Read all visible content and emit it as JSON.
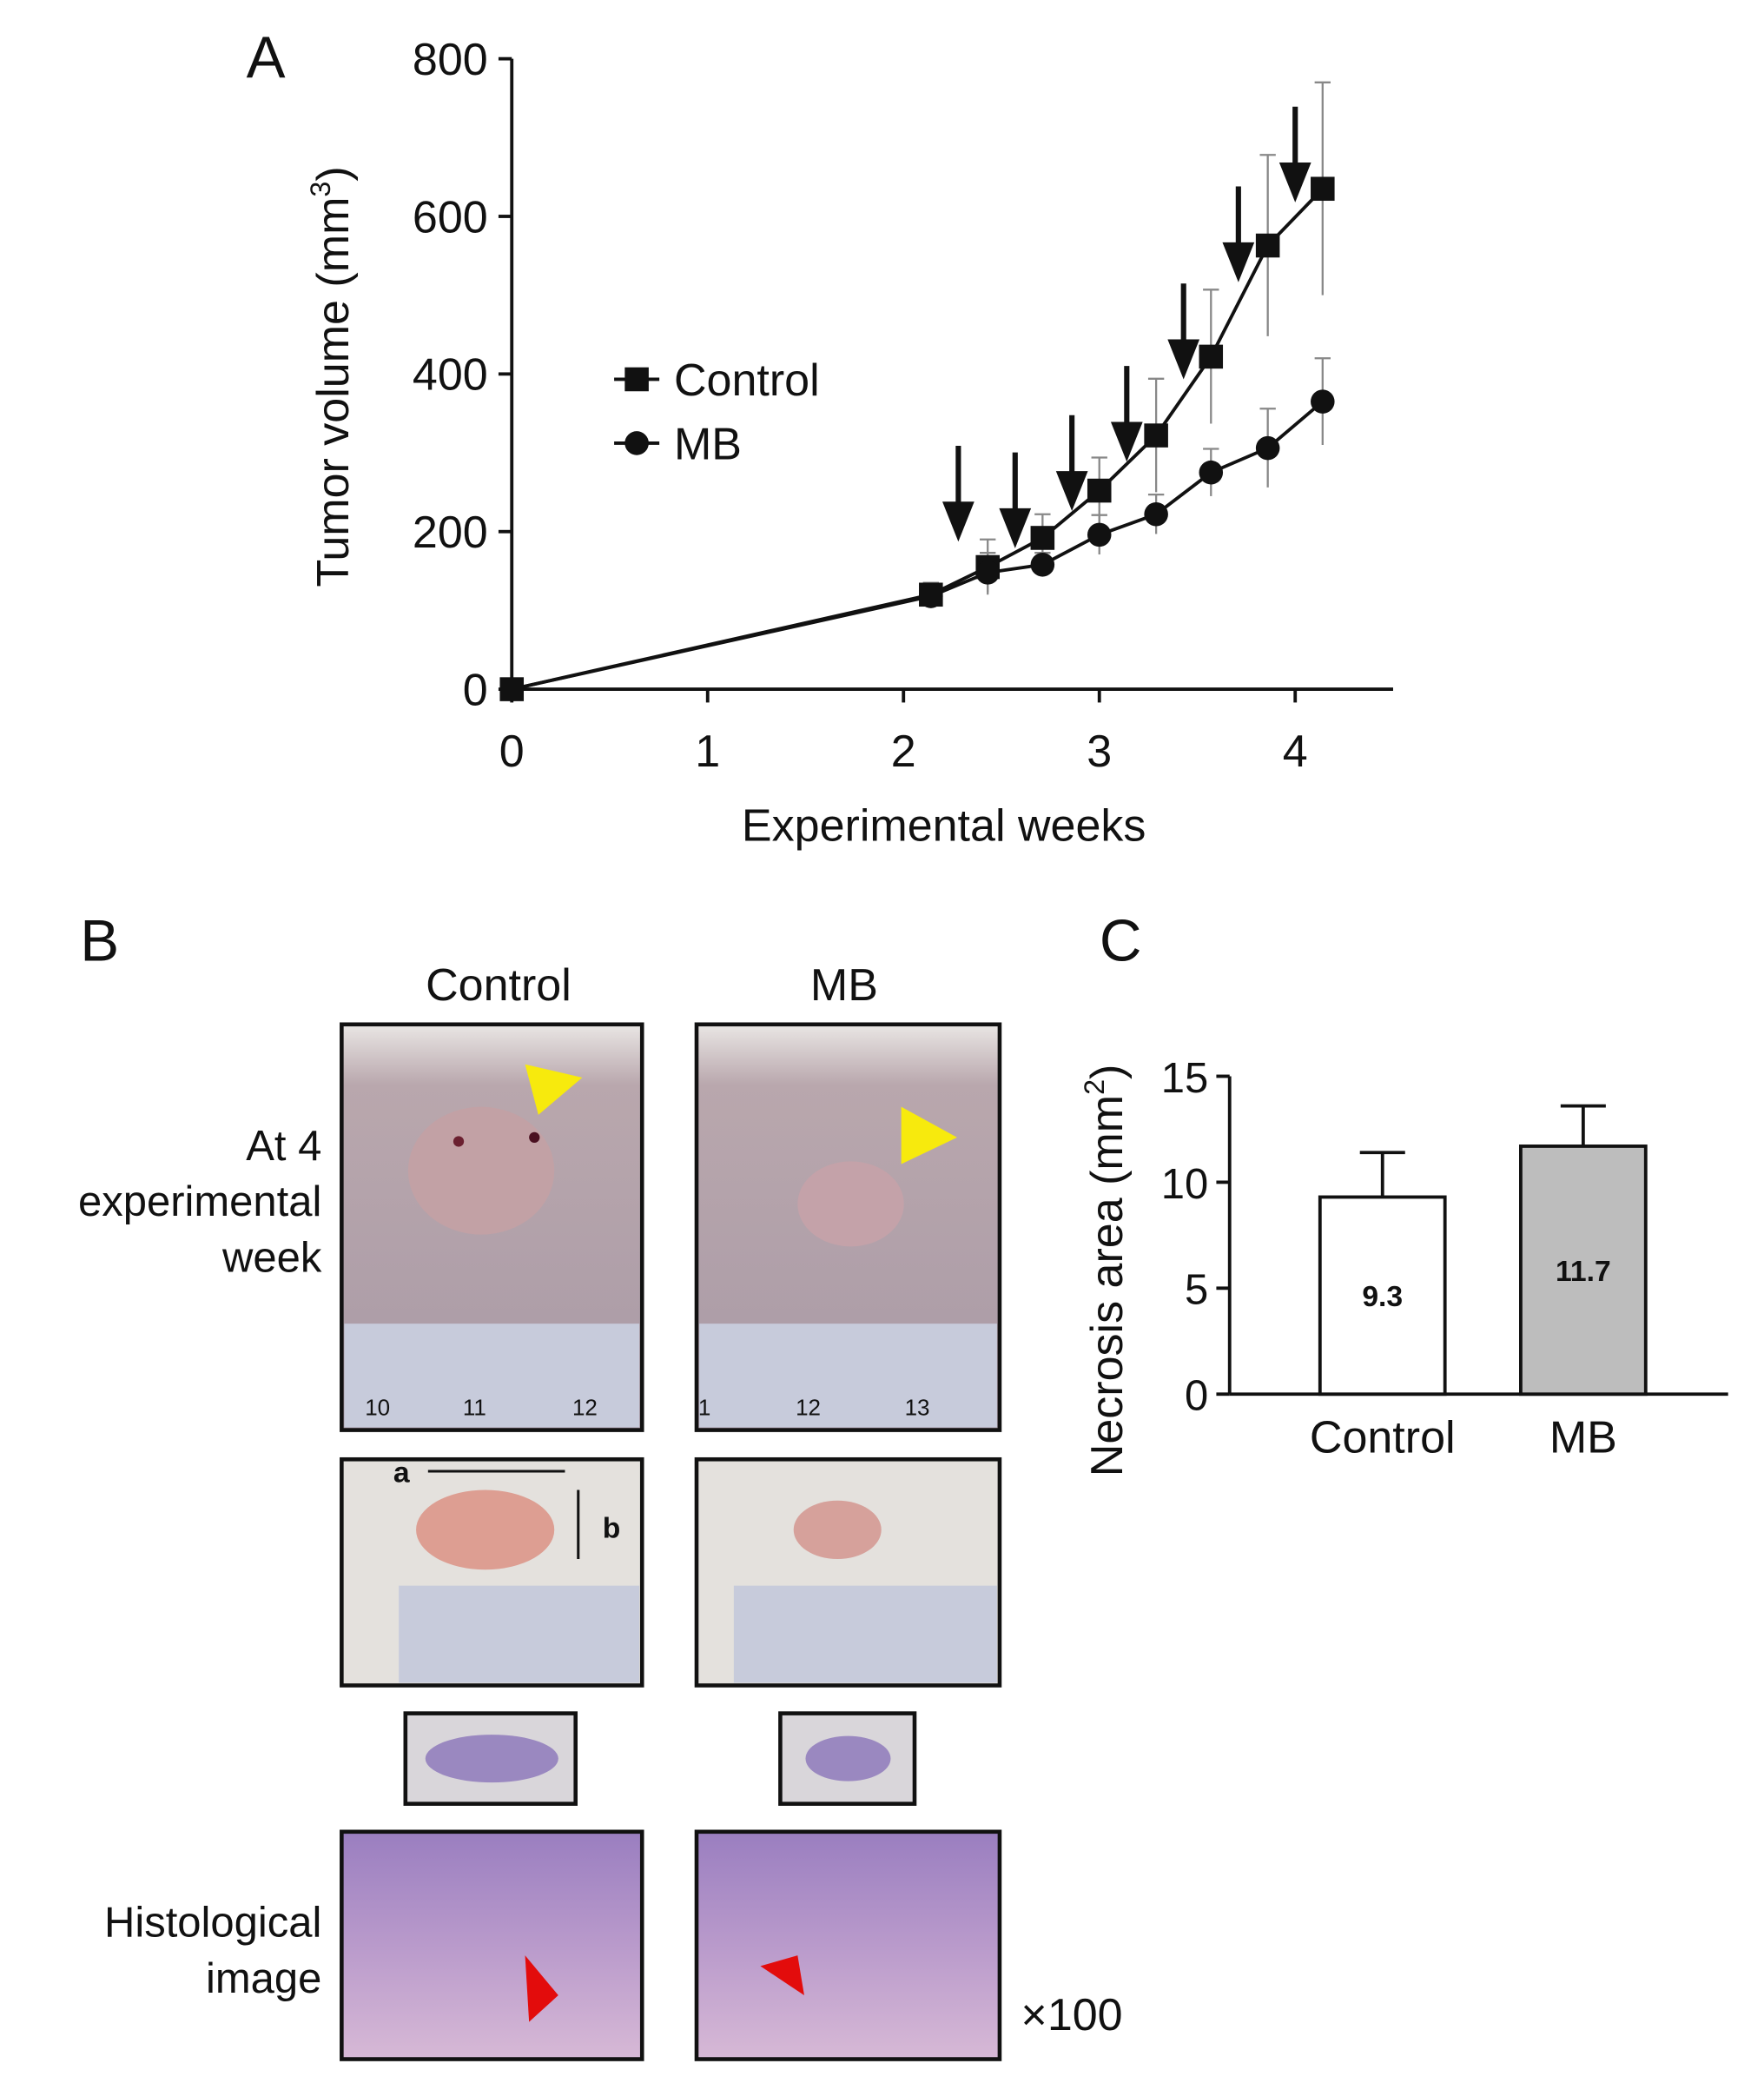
{
  "panels": {
    "a": "A",
    "b": "B",
    "c": "C"
  },
  "photos": {
    "columns": [
      "Control",
      "MB"
    ],
    "row_label_1": [
      "At 4",
      "experimental",
      "week"
    ],
    "row_label_2": [
      "Histological",
      "image"
    ],
    "magnification": "×100",
    "dimension_a": "a",
    "dimension_b": "b",
    "ruler_labels": [
      [
        "10",
        "11",
        "12"
      ],
      [
        "1",
        "12",
        "13"
      ]
    ]
  },
  "chart_data": [
    {
      "type": "line",
      "xlabel": "Experimental weeks",
      "ylabel_parts": [
        "Tumor volume (mm",
        "3",
        ")"
      ],
      "x": [
        0,
        2.14,
        2.43,
        2.71,
        3.0,
        3.29,
        3.57,
        3.86,
        4.14
      ],
      "series": [
        {
          "name": "Control",
          "color": "#111111",
          "marker": "square",
          "values": [
            0,
            120,
            155,
            192,
            252,
            322,
            422,
            563,
            635
          ],
          "errors": [
            0,
            15,
            35,
            30,
            42,
            72,
            85,
            115,
            135
          ]
        },
        {
          "name": "MB",
          "color": "#111111",
          "marker": "circle",
          "values": [
            0,
            118,
            148,
            158,
            196,
            222,
            275,
            306,
            365
          ],
          "errors": [
            0,
            10,
            25,
            15,
            25,
            25,
            30,
            50,
            55
          ]
        }
      ],
      "arrows_x": [
        2.28,
        2.57,
        2.86,
        3.14,
        3.43,
        3.71,
        4.0
      ],
      "xlim": [
        0,
        4.5
      ],
      "xticks": [
        0,
        1,
        2,
        3,
        4
      ],
      "ylim": [
        0,
        800
      ],
      "yticks": [
        0,
        200,
        400,
        600,
        800
      ]
    },
    {
      "type": "bar",
      "ylabel_parts": [
        "Necrosis area (mm",
        "2",
        ")"
      ],
      "categories": [
        "Control",
        "MB"
      ],
      "values": [
        9.3,
        11.7
      ],
      "errors": [
        2.1,
        1.9
      ],
      "colors": [
        "#ffffff",
        "#bdbdbd"
      ],
      "ylim": [
        0,
        15
      ],
      "yticks": [
        0,
        5,
        10,
        15
      ]
    }
  ]
}
